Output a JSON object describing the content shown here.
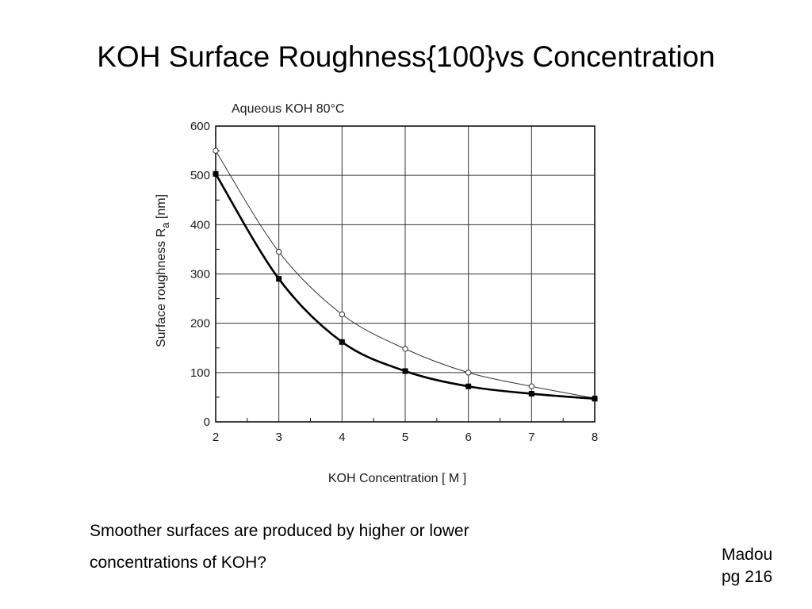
{
  "slide": {
    "title": "KOH Surface Roughness{100}vs Concentration",
    "caption_lines": [
      "Smoother surfaces are produced by higher or lower",
      "concentrations of KOH?"
    ],
    "source_lines": [
      "Madou",
      "pg 216"
    ]
  },
  "chart_data": {
    "type": "line",
    "title": "Aqueous KOH 80°C",
    "xlabel": "KOH Concentration  [ M ]",
    "ylabel": "Surface roughness R",
    "ylabel_subscript": "a",
    "ylabel_unit": " [nm]",
    "xlim": [
      2,
      8
    ],
    "ylim": [
      0,
      600
    ],
    "xticks": [
      2,
      3,
      4,
      5,
      6,
      7,
      8
    ],
    "yticks": [
      0,
      100,
      200,
      300,
      400,
      500,
      600
    ],
    "grid": true,
    "series": [
      {
        "marker": "open-circle",
        "line": "thin",
        "color": "#333333",
        "x": [
          2,
          3,
          4,
          5,
          6,
          7,
          8
        ],
        "y": [
          550,
          345,
          218,
          148,
          100,
          72,
          48
        ]
      },
      {
        "marker": "filled-square",
        "line": "thick",
        "color": "#000000",
        "x": [
          2,
          3,
          4,
          5,
          6,
          7,
          8
        ],
        "y": [
          503,
          290,
          162,
          103,
          72,
          57,
          47
        ]
      }
    ]
  }
}
